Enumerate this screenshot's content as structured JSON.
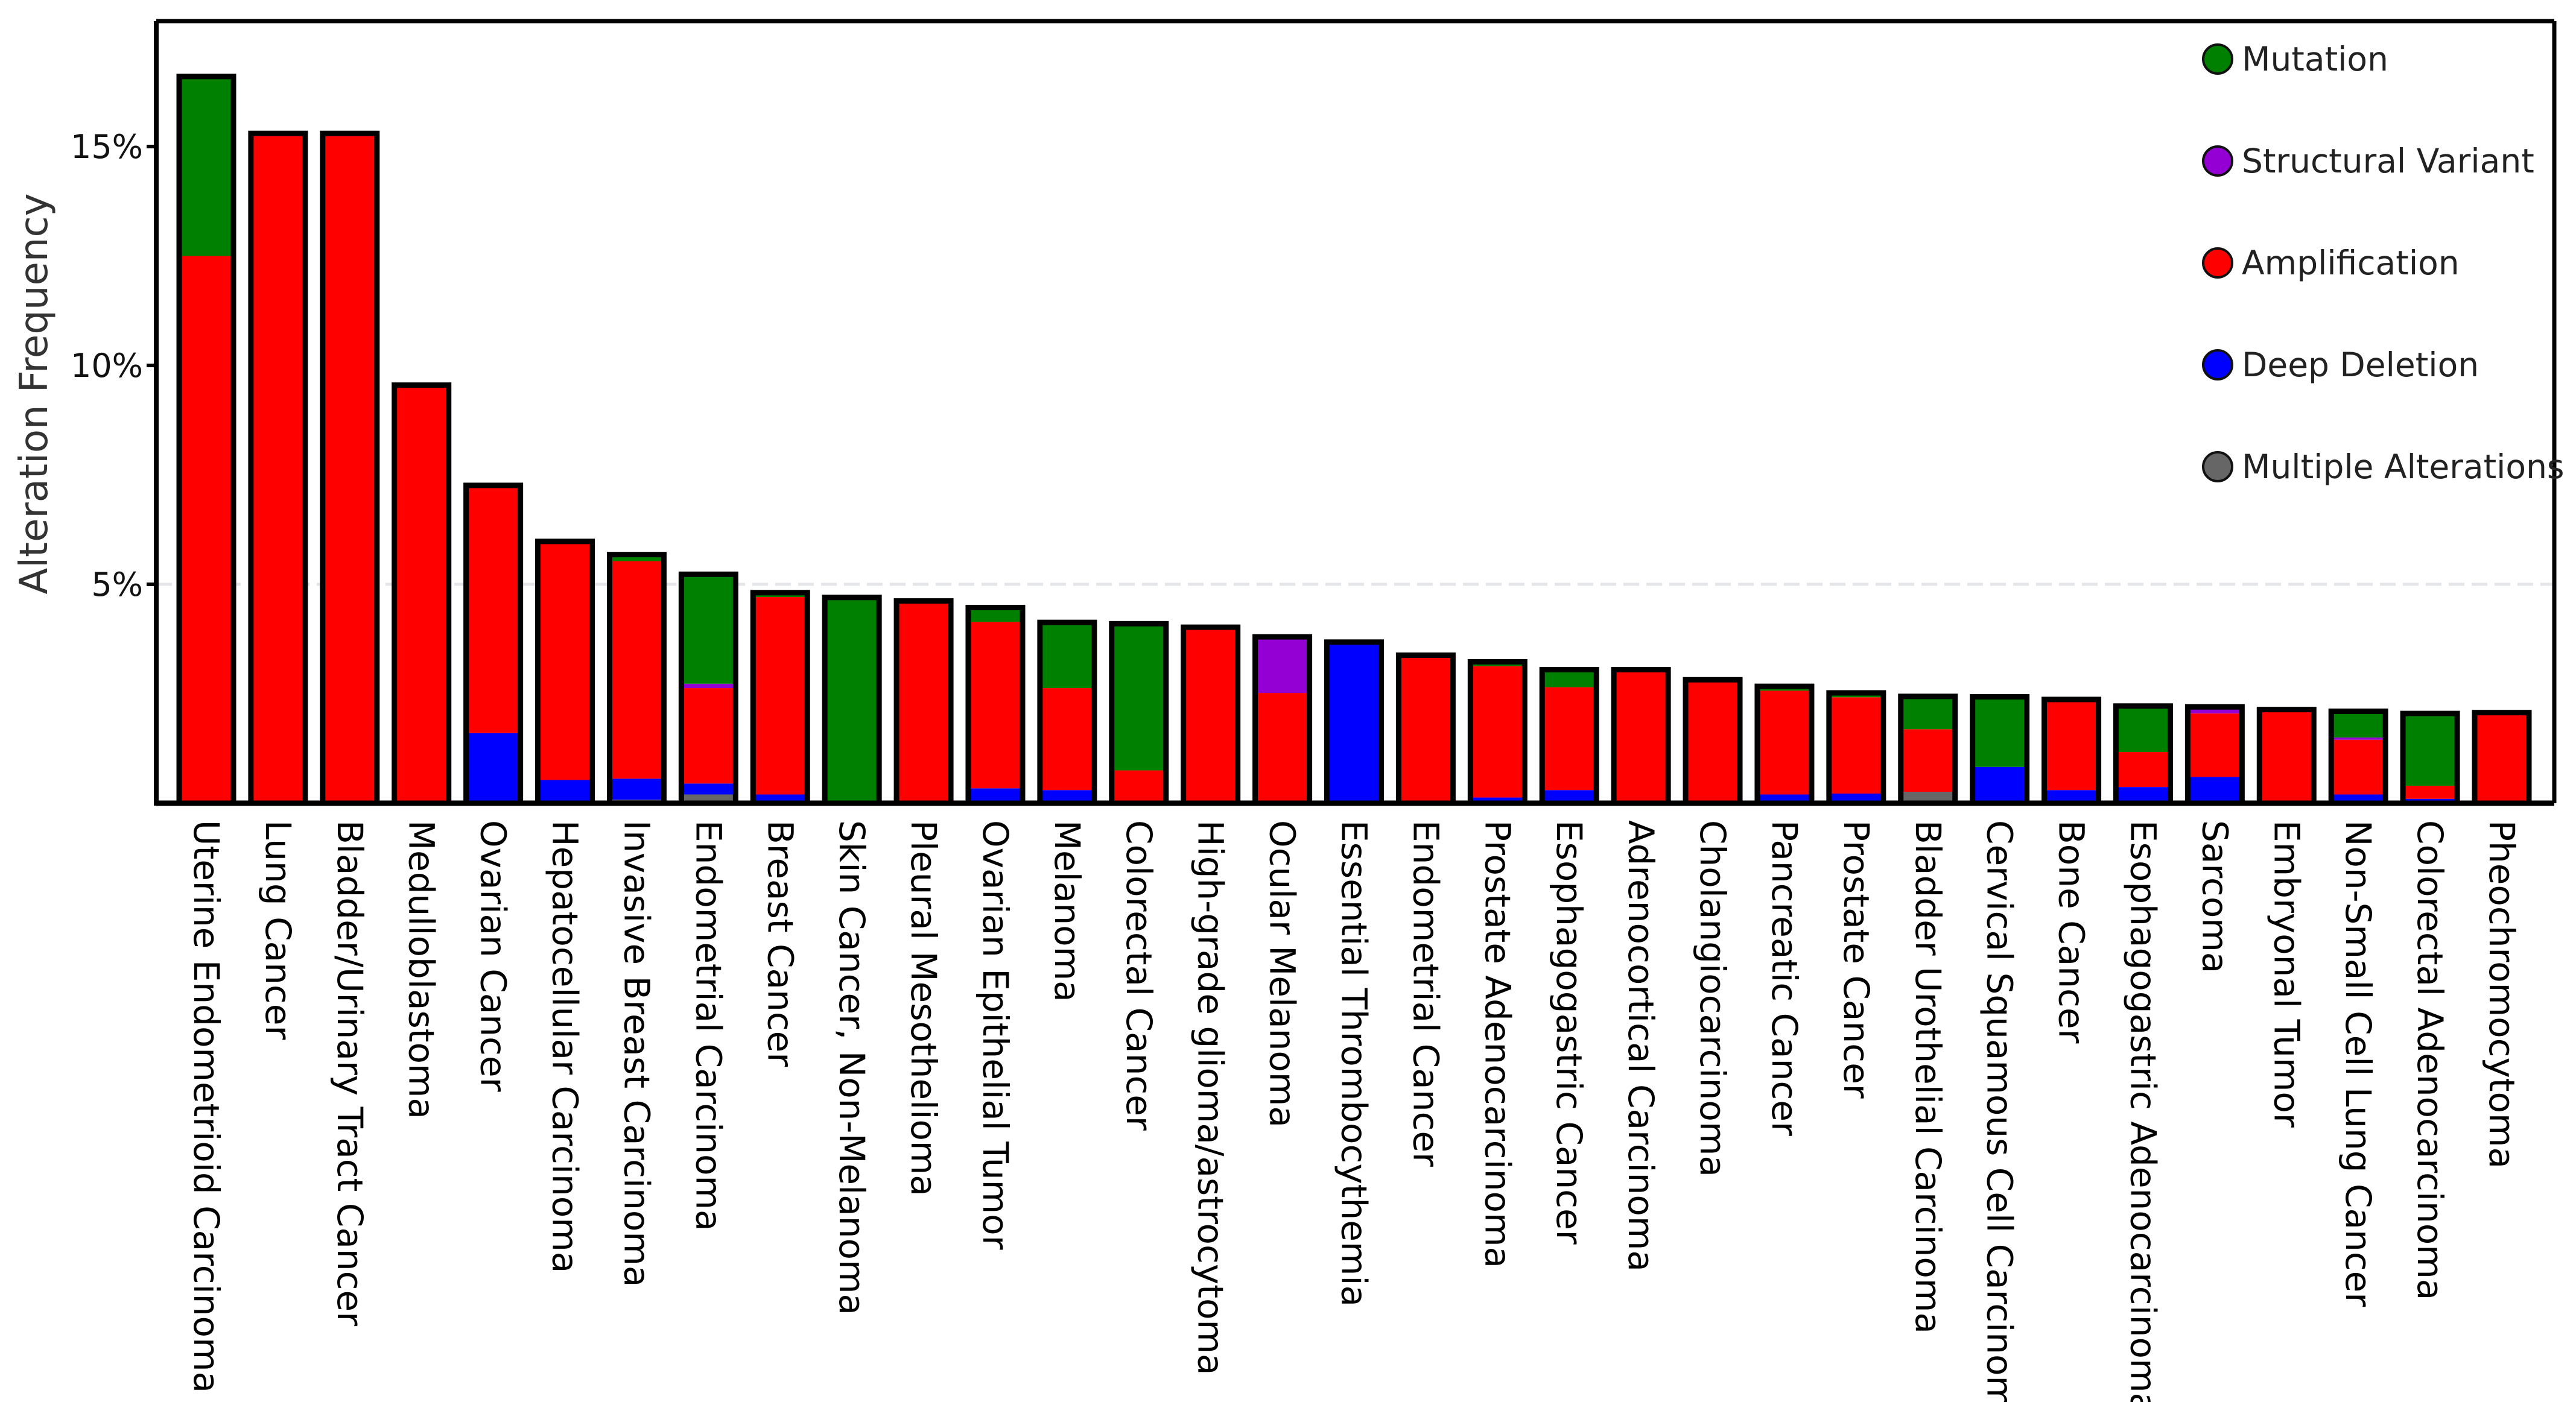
{
  "chart_data": {
    "type": "bar",
    "stacked": true,
    "title": "",
    "xlabel": "",
    "ylabel": "Alteration Frequency",
    "ylim": [
      0,
      17
    ],
    "yticks": [
      5,
      10,
      15
    ],
    "ytick_labels": [
      "5%",
      "10%",
      "15%"
    ],
    "grid": "dashed line at 5%",
    "legend_position": "top-right",
    "categories": [
      "Uterine Endometrioid Carcinoma",
      "Lung Cancer",
      "Bladder/Urinary Tract Cancer",
      "Medulloblastoma",
      "Ovarian Cancer",
      "Hepatocellular Carcinoma",
      "Invasive Breast Carcinoma",
      "Endometrial Carcinoma",
      "Breast Cancer",
      "Skin Cancer, Non-Melanoma",
      "Pleural Mesothelioma",
      "Ovarian Epithelial Tumor",
      "Melanoma",
      "Colorectal Cancer",
      "High-grade glioma/astrocytoma",
      "Ocular Melanoma",
      "Essential Thrombocythemia",
      "Endometrial Cancer",
      "Prostate Adenocarcinoma",
      "Esophagogastric Cancer",
      "Adrenocortical Carcinoma",
      "Cholangiocarcinoma",
      "Pancreatic Cancer",
      "Prostate Cancer",
      "Bladder Urothelial Carcinoma",
      "Cervical Squamous Cell Carcinoma",
      "Bone Cancer",
      "Esophagogastric Adenocarcinoma",
      "Sarcoma",
      "Embryonal Tumor",
      "Non-Small Cell Lung Cancer",
      "Colorectal Adenocarcinoma",
      "Pheochromocytoma"
    ],
    "series": [
      {
        "name": "Multiple Alterations",
        "color": "#666666",
        "values": [
          0,
          0,
          0,
          0,
          0,
          0,
          0.08,
          0.2,
          0.05,
          0,
          0,
          0,
          0,
          0,
          0,
          0,
          0,
          0,
          0,
          0,
          0,
          0,
          0,
          0,
          0.26,
          0,
          0,
          0,
          0,
          0,
          0,
          0,
          0
        ]
      },
      {
        "name": "Deep Deletion",
        "color": "#0000ff",
        "values": [
          0,
          0,
          0,
          0,
          1.6,
          0.53,
          0.48,
          0.25,
          0.15,
          0,
          0,
          0.34,
          0.3,
          0,
          0,
          0,
          3.68,
          0,
          0.13,
          0.3,
          0,
          0,
          0.2,
          0.22,
          0,
          0.83,
          0.3,
          0.37,
          0.6,
          0,
          0.2,
          0.1,
          0
        ]
      },
      {
        "name": "Amplification",
        "color": "#ff0000",
        "values": [
          12.5,
          15.3,
          15.3,
          9.55,
          5.66,
          5.45,
          4.97,
          2.18,
          4.51,
          0,
          4.62,
          3.8,
          2.33,
          0.75,
          4.02,
          2.52,
          0,
          3.38,
          3.0,
          2.35,
          3.05,
          2.82,
          2.37,
          2.2,
          1.43,
          0,
          2.07,
          0.8,
          1.45,
          2.14,
          1.25,
          0.3,
          2.07
        ]
      },
      {
        "name": "Structural Variant",
        "color": "#9400d3",
        "values": [
          0,
          0,
          0,
          0,
          0,
          0,
          0,
          0.1,
          0,
          0,
          0,
          0,
          0,
          0,
          0,
          1.28,
          0,
          0,
          0,
          0,
          0,
          0,
          0,
          0,
          0,
          0,
          0,
          0,
          0.15,
          0,
          0.05,
          0,
          0
        ]
      },
      {
        "name": "Mutation",
        "color": "#008000",
        "values": [
          4.1,
          0,
          0,
          0,
          0,
          0,
          0.15,
          2.5,
          0.1,
          4.7,
          0,
          0.33,
          1.5,
          3.35,
          0,
          0,
          0,
          0,
          0.1,
          0.4,
          0,
          0,
          0.1,
          0.1,
          0.75,
          1.6,
          0,
          1.05,
          0,
          0,
          0.6,
          1.65,
          0
        ]
      }
    ],
    "legend": [
      {
        "label": "Mutation",
        "color": "#008000"
      },
      {
        "label": "Structural Variant",
        "color": "#9400d3"
      },
      {
        "label": "Amplification",
        "color": "#ff0000"
      },
      {
        "label": "Deep Deletion",
        "color": "#0000ff"
      },
      {
        "label": "Multiple Alterations",
        "color": "#666666"
      }
    ]
  }
}
